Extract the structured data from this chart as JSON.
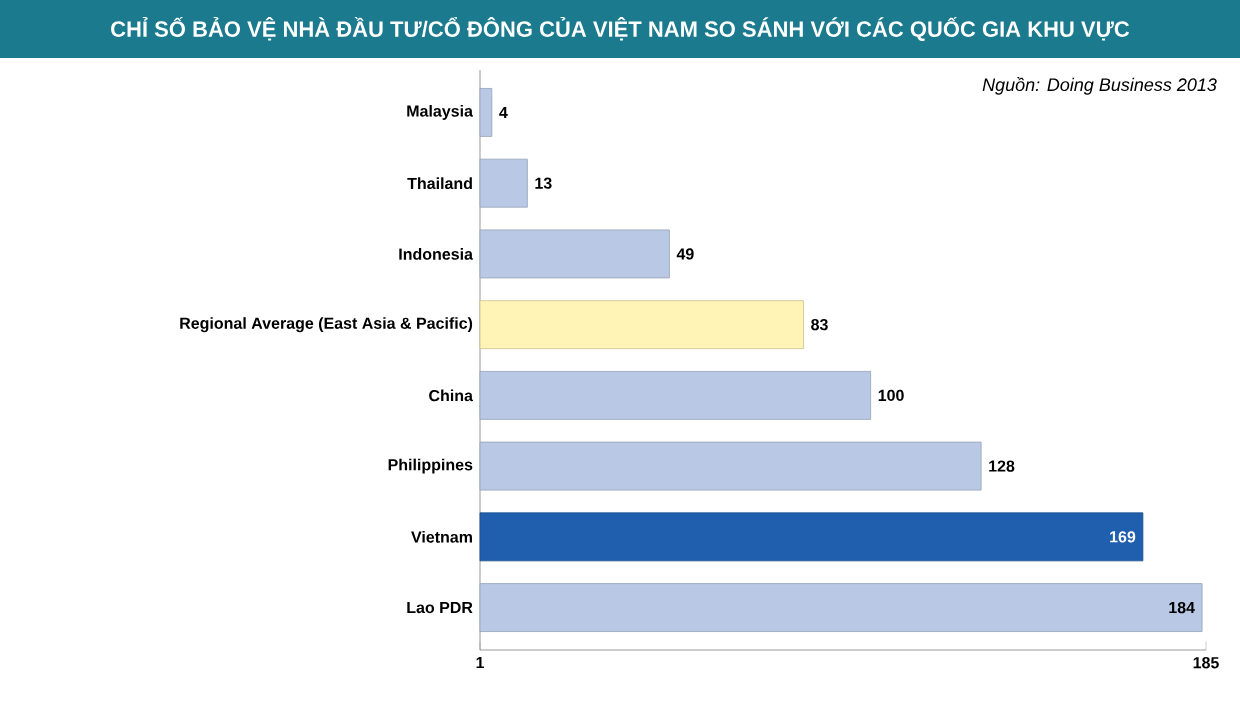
{
  "chart_data": {
    "type": "bar",
    "orientation": "horizontal",
    "title": "CHỈ SỐ BẢO VỆ NHÀ ĐẦU TƯ/CỔ ĐÔNG CỦA VIỆT NAM SO SÁNH VỚI CÁC QUỐC GIA KHU VỰC",
    "annotations": [
      "Nguồn: Doing Business 2013"
    ],
    "categories": [
      "Malaysia",
      "Thailand",
      "Indonesia",
      "Regional Average (East Asia & Pacific)",
      "China",
      "Philippines",
      "Vietnam",
      "Lao PDR"
    ],
    "values": [
      4,
      13,
      49,
      83,
      100,
      128,
      169,
      184
    ],
    "colors": [
      "#b9c9e5",
      "#b9c9e5",
      "#b9c9e5",
      "#fff3b5",
      "#b9c9e5",
      "#b9c9e5",
      "#1f5fae",
      "#b9c9e5"
    ],
    "xlim": [
      1,
      185
    ],
    "xticks": [
      1,
      185
    ],
    "data_labels": true
  }
}
